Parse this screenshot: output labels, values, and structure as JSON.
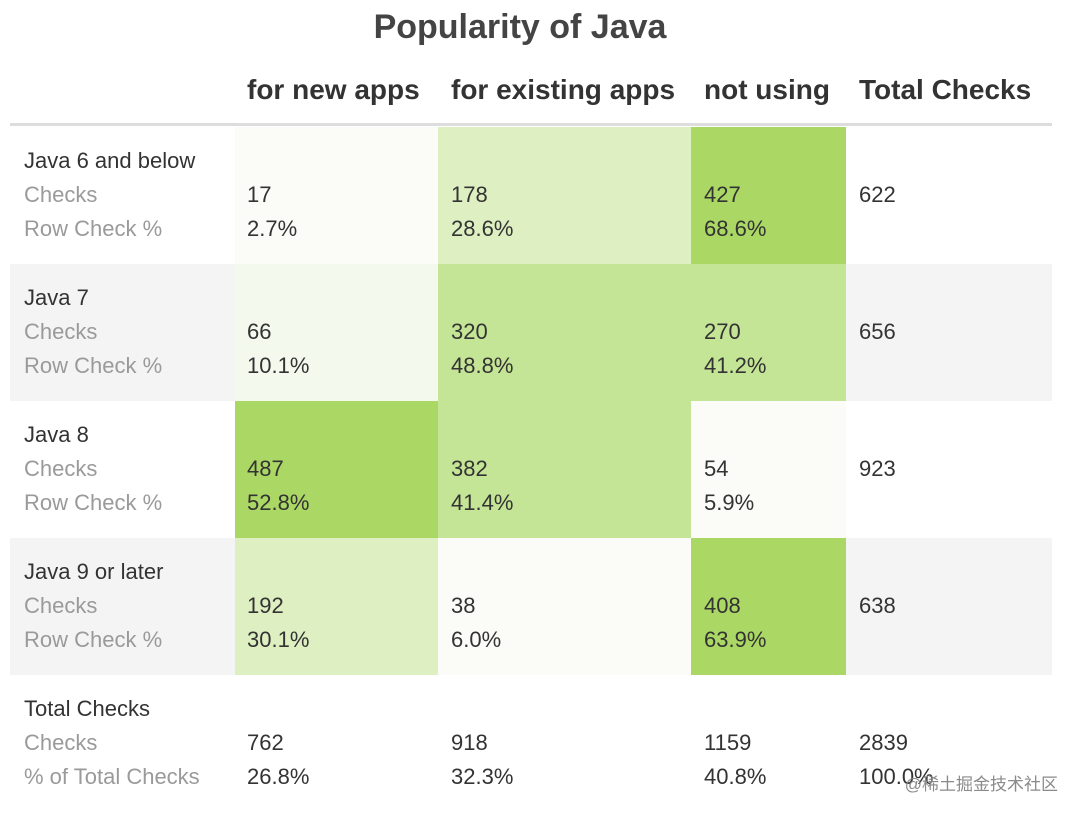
{
  "chart_data": {
    "type": "table",
    "title": "Popularity of Java",
    "columns": [
      "for new apps",
      "for existing apps",
      "not using",
      "Total Checks"
    ],
    "checks_label": "Checks",
    "row_pct_label": "Row Check %",
    "rows": [
      {
        "name": "Java 6 and below",
        "checks": [
          17,
          178,
          427
        ],
        "pct": [
          "2.7%",
          "28.6%",
          "68.6%"
        ],
        "total": 622
      },
      {
        "name": "Java 7",
        "checks": [
          66,
          320,
          270
        ],
        "pct": [
          "10.1%",
          "48.8%",
          "41.2%"
        ],
        "total": 656
      },
      {
        "name": "Java 8",
        "checks": [
          487,
          382,
          54
        ],
        "pct": [
          "52.8%",
          "41.4%",
          "5.9%"
        ],
        "total": 923
      },
      {
        "name": "Java 9 or later",
        "checks": [
          192,
          38,
          408
        ],
        "pct": [
          "30.1%",
          "6.0%",
          "63.9%"
        ],
        "total": 638
      }
    ],
    "totals": {
      "name": "Total Checks",
      "checks_label": "Checks",
      "pct_label": "% of Total Checks",
      "checks": [
        762,
        918,
        1159,
        2839
      ],
      "pct": [
        "26.8%",
        "32.3%",
        "40.8%",
        "100.0%"
      ]
    },
    "heat_colors": {
      "lowest": "#fbfcf8",
      "low": "#f3f9ec",
      "mid_low": "#deefc1",
      "mid_high": "#c5e596",
      "high": "#abd864"
    }
  },
  "watermark": "@稀土掘金技术社区"
}
